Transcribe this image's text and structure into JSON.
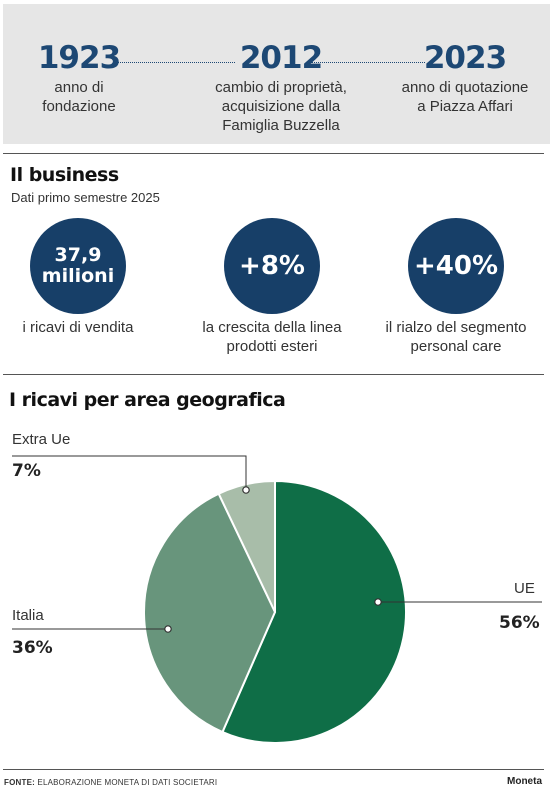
{
  "timeline": [
    {
      "year": "1923",
      "text": "anno di\nfondazione"
    },
    {
      "year": "2012",
      "text": "cambio di proprietà,\nacquisizione dalla\nFamiglia Buzzella"
    },
    {
      "year": "2023",
      "text": "anno di quotazione\na Piazza Affari"
    }
  ],
  "business": {
    "title": "Il business",
    "subtitle": "Dati primo semestre 2025",
    "kpis": [
      {
        "value": "37,9\nmilioni",
        "label": "i ricavi di vendita"
      },
      {
        "value": "+8%",
        "label": "la crescita della linea\nprodotti esteri"
      },
      {
        "value": "+40%",
        "label": "il rialzo del segmento\npersonal care"
      }
    ]
  },
  "chart_data": {
    "type": "pie",
    "title": "I ricavi per area geografica",
    "slices": [
      {
        "label": "UE",
        "value": 56,
        "display": "56%",
        "color": "#0f6e47"
      },
      {
        "label": "Italia",
        "value": 36,
        "display": "36%",
        "color": "#68957c"
      },
      {
        "label": "Extra Ue",
        "value": 7,
        "display": "7%",
        "color": "#a8bda9"
      }
    ]
  },
  "footer": {
    "source_label": "FONTE:",
    "source_text": "ELABORAZIONE MONETA DI DATI SOCIETARI",
    "brand": "Moneta"
  }
}
